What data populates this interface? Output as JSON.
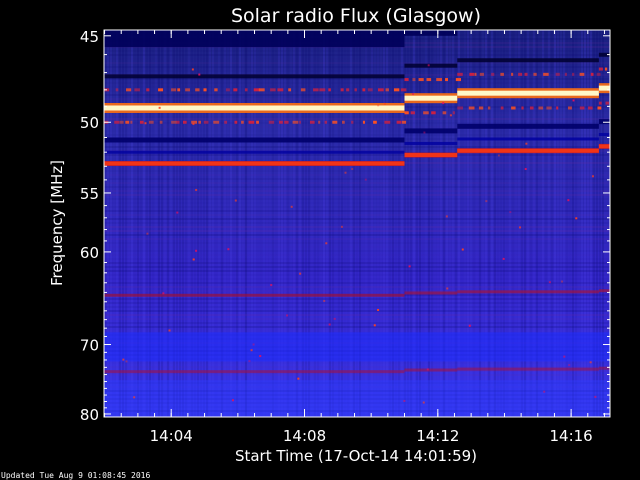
{
  "chart_data": {
    "type": "heatmap",
    "title": "Solar radio Flux (Glasgow)",
    "xlabel": "Start Time (17-Oct-14 14:01:59)",
    "ylabel": "Frequency [MHz]",
    "xlim": [
      "14:01:59",
      "14:17:10"
    ],
    "ylim": [
      80.5,
      44.7
    ],
    "x_ticks": [
      "14:04",
      "14:08",
      "14:12",
      "14:16"
    ],
    "y_ticks": [
      45,
      50,
      55,
      60,
      70,
      80
    ],
    "y_scale": "reciprocal",
    "colormap": "blue-red-yellow-white",
    "level_changes": [
      {
        "time": "14:11:00",
        "shift_mhz": -0.6
      },
      {
        "time": "14:12:35",
        "shift_mhz": -0.3
      },
      {
        "time": "14:16:50",
        "shift_mhz": -0.3
      }
    ],
    "bright_lines_mhz": [
      {
        "freq": 49.1,
        "intensity": 1.0,
        "color": "#fff8c8"
      },
      {
        "freq": 52.8,
        "intensity": 0.85,
        "color": "#ff3a10"
      },
      {
        "freq": 64.3,
        "intensity": 0.6,
        "color": "#b0102a"
      },
      {
        "freq": 73.6,
        "intensity": 0.55,
        "color": "#a5103a"
      }
    ],
    "background_colors": {
      "top": "#202890",
      "bottom": "#3830f0",
      "dark": "#00005a"
    }
  },
  "footer": {
    "updated": "Updated Tue Aug  9 01:08:45 2016"
  }
}
